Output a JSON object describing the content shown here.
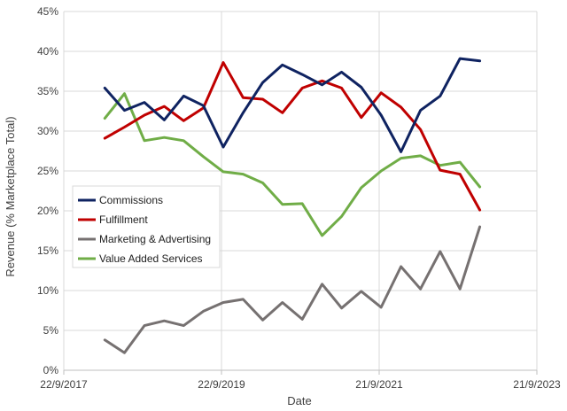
{
  "chart_data": {
    "type": "line",
    "title": "",
    "xlabel": "Date",
    "ylabel": "Revenue (% Marketplace Total)",
    "xlim": [
      "2017-09-22",
      "2023-09-21"
    ],
    "x_ticks": [
      {
        "date": "2017-09-22",
        "label": "22/9/2017"
      },
      {
        "date": "2019-09-22",
        "label": "22/9/2019"
      },
      {
        "date": "2021-09-21",
        "label": "21/9/2021"
      },
      {
        "date": "2023-09-21",
        "label": "21/9/2023"
      }
    ],
    "ylim": [
      0,
      45
    ],
    "y_ticks": [
      0,
      5,
      10,
      15,
      20,
      25,
      30,
      35,
      40,
      45
    ],
    "y_tick_labels": [
      "0%",
      "5%",
      "10%",
      "15%",
      "20%",
      "25%",
      "30%",
      "35%",
      "40%",
      "45%"
    ],
    "grid": true,
    "legend_position": "left-middle",
    "x": [
      "2018-03-31",
      "2018-06-30",
      "2018-09-30",
      "2018-12-31",
      "2019-03-31",
      "2019-06-30",
      "2019-09-30",
      "2019-12-31",
      "2020-03-31",
      "2020-06-30",
      "2020-09-30",
      "2020-12-31",
      "2021-03-31",
      "2021-06-30",
      "2021-09-30",
      "2021-12-31",
      "2022-03-31",
      "2022-06-30",
      "2022-09-30",
      "2022-12-31"
    ],
    "series": [
      {
        "name": "Commissions",
        "color": "#0f2361",
        "values": [
          35.4,
          32.6,
          33.6,
          31.4,
          34.4,
          33.2,
          28.0,
          32.3,
          36.1,
          38.3,
          37.1,
          35.8,
          37.4,
          35.5,
          32.0,
          27.4,
          32.6,
          34.4,
          39.1,
          38.8
        ]
      },
      {
        "name": "Fulfillment",
        "color": "#c00000",
        "values": [
          29.1,
          30.5,
          32.0,
          33.1,
          31.3,
          32.9,
          38.6,
          34.2,
          34.0,
          32.3,
          35.4,
          36.3,
          35.4,
          31.7,
          34.8,
          33.0,
          30.2,
          25.1,
          24.6,
          20.1
        ]
      },
      {
        "name": "Marketing & Advertising",
        "color": "#767171",
        "values": [
          3.8,
          2.2,
          5.6,
          6.2,
          5.6,
          7.4,
          8.5,
          8.9,
          6.3,
          8.5,
          6.4,
          10.8,
          7.8,
          9.9,
          7.9,
          13.0,
          10.2,
          14.9,
          10.2,
          18.0
        ]
      },
      {
        "name": "Value Added Services",
        "color": "#70ad47",
        "values": [
          31.6,
          34.7,
          28.8,
          29.2,
          28.8,
          26.8,
          24.9,
          24.6,
          23.5,
          20.8,
          20.9,
          16.9,
          19.3,
          22.9,
          25.0,
          26.6,
          26.9,
          25.7,
          26.1,
          23.0
        ]
      }
    ]
  }
}
